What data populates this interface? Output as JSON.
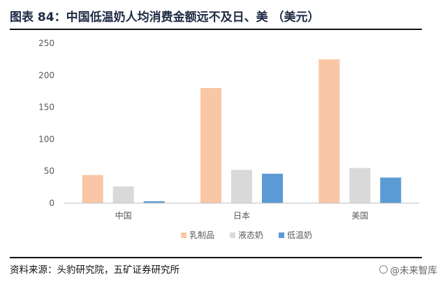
{
  "header": {
    "title": "图表 84：中国低温奶人均消费金额远不及日、美 （美元）"
  },
  "footer": {
    "source": "资料来源：头豹研究院，五矿证券研究所",
    "watermark": "@未来智库"
  },
  "chart_data": {
    "type": "bar",
    "title": "",
    "xlabel": "",
    "ylabel": "",
    "categories": [
      "中国",
      "日本",
      "美国"
    ],
    "ylim": [
      0,
      250
    ],
    "yticks": [
      0,
      50,
      100,
      150,
      200,
      250
    ],
    "grid": false,
    "legend_position": "bottom",
    "series": [
      {
        "name": "乳制品",
        "color": "#f9c7a5",
        "values": [
          44,
          180,
          225
        ]
      },
      {
        "name": "液态奶",
        "color": "#d9d9d9",
        "values": [
          26,
          52,
          55
        ]
      },
      {
        "name": "低温奶",
        "color": "#5b9bd5",
        "values": [
          3,
          46,
          40
        ]
      }
    ]
  }
}
